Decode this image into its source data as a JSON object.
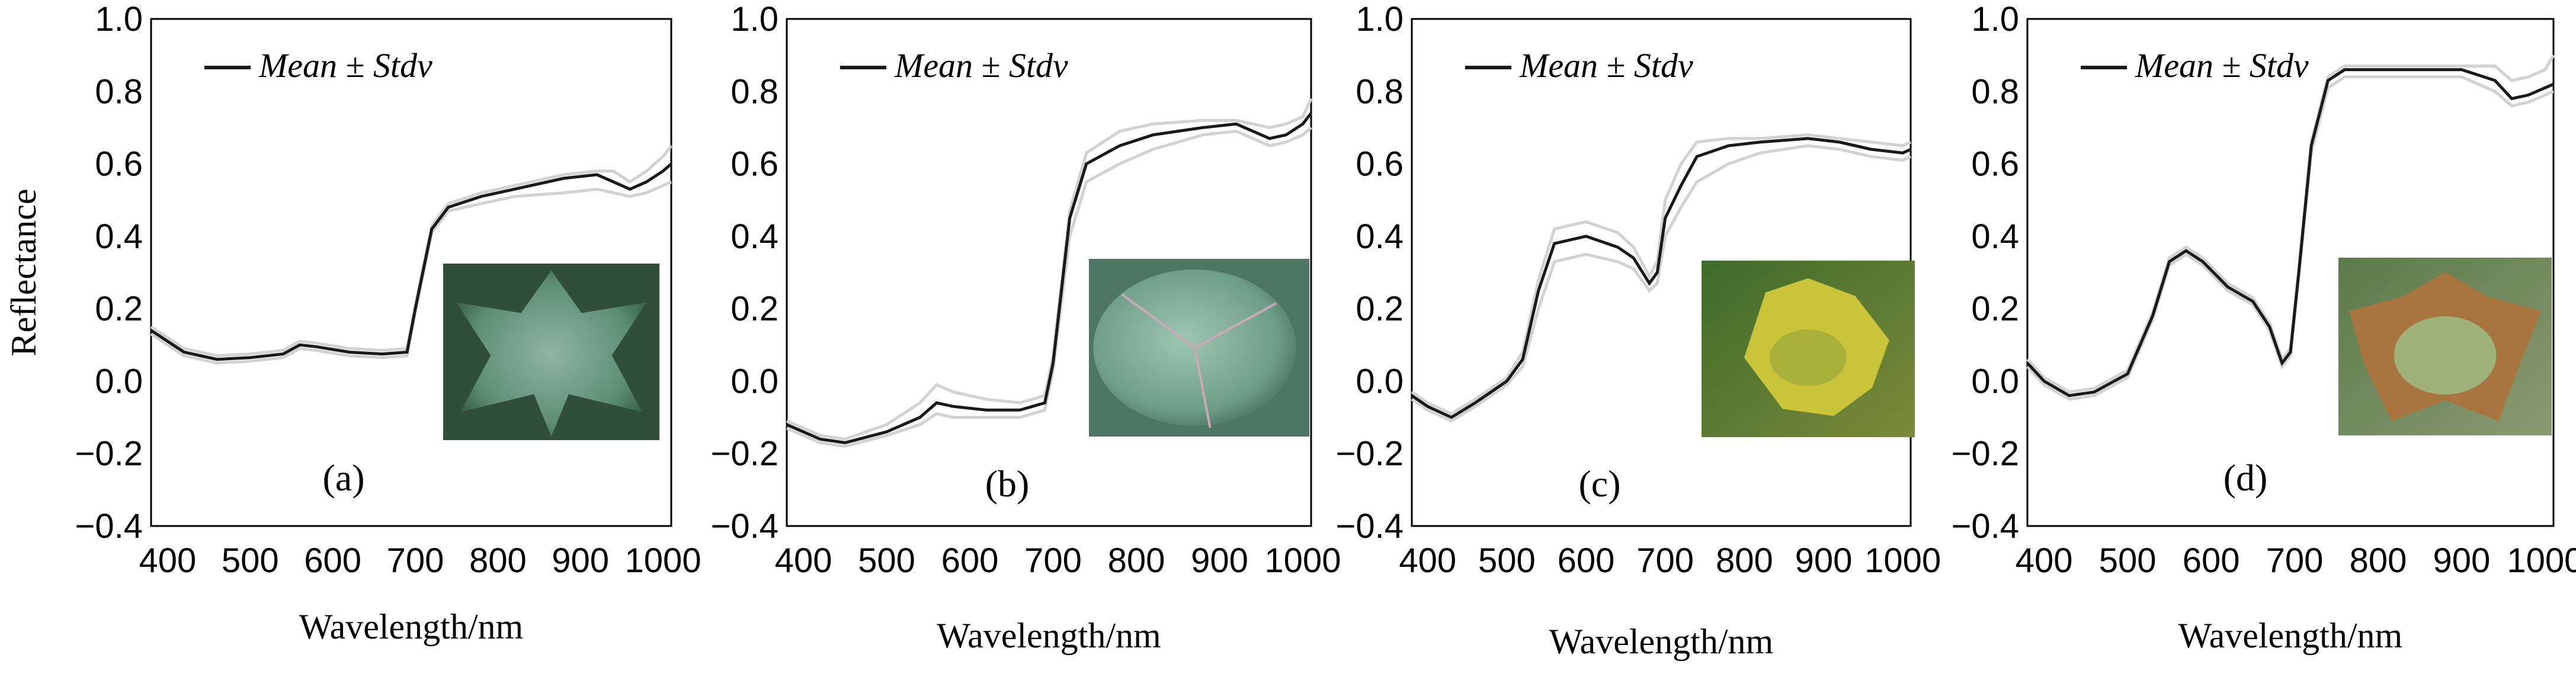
{
  "chart_data": [
    {
      "type": "line",
      "panel_label": "(a)",
      "xlabel": "Wavelength/nm",
      "ylabel": "Reflectance",
      "xlim": [
        380,
        1010
      ],
      "ylim": [
        -0.4,
        1.0
      ],
      "xticks": [
        400,
        500,
        600,
        700,
        800,
        900,
        1000
      ],
      "yticks": [
        "1.0",
        "0.8",
        "0.6",
        "0.4",
        "0.2",
        "0.0",
        "−0.2",
        "−0.4"
      ],
      "legend": "Mean ± Stdv",
      "legend_position": "top-left",
      "inset": "healthy-leaf",
      "series": [
        {
          "name": "Mean",
          "x": [
            380,
            420,
            460,
            500,
            540,
            560,
            580,
            620,
            660,
            690,
            700,
            720,
            740,
            780,
            820,
            880,
            920,
            940,
            960,
            980,
            1000,
            1010
          ],
          "y": [
            0.14,
            0.08,
            0.06,
            0.065,
            0.075,
            0.1,
            0.095,
            0.08,
            0.075,
            0.08,
            0.2,
            0.42,
            0.48,
            0.51,
            0.53,
            0.56,
            0.57,
            0.55,
            0.53,
            0.55,
            0.58,
            0.6
          ]
        },
        {
          "name": "Mean + Stdv",
          "x": [
            380,
            420,
            460,
            500,
            540,
            560,
            580,
            620,
            660,
            690,
            700,
            720,
            740,
            780,
            820,
            880,
            920,
            940,
            960,
            980,
            1000,
            1010
          ],
          "y": [
            0.15,
            0.09,
            0.07,
            0.075,
            0.085,
            0.11,
            0.105,
            0.09,
            0.085,
            0.09,
            0.21,
            0.43,
            0.49,
            0.52,
            0.54,
            0.57,
            0.58,
            0.58,
            0.55,
            0.58,
            0.62,
            0.65
          ]
        },
        {
          "name": "Mean − Stdv",
          "x": [
            380,
            420,
            460,
            500,
            540,
            560,
            580,
            620,
            660,
            690,
            700,
            720,
            740,
            780,
            820,
            880,
            920,
            940,
            960,
            980,
            1000,
            1010
          ],
          "y": [
            0.13,
            0.07,
            0.05,
            0.055,
            0.065,
            0.09,
            0.085,
            0.07,
            0.065,
            0.07,
            0.19,
            0.41,
            0.47,
            0.49,
            0.51,
            0.52,
            0.53,
            0.52,
            0.51,
            0.52,
            0.54,
            0.55
          ]
        }
      ]
    },
    {
      "type": "line",
      "panel_label": "(b)",
      "xlabel": "Wavelength/nm",
      "ylabel": "",
      "xlim": [
        380,
        1010
      ],
      "ylim": [
        -0.4,
        1.0
      ],
      "xticks": [
        400,
        500,
        600,
        700,
        800,
        900,
        1000
      ],
      "yticks": [
        "1.0",
        "0.8",
        "0.6",
        "0.4",
        "0.2",
        "0.0",
        "−0.2",
        "−0.4"
      ],
      "legend": "Mean ± Stdv",
      "legend_position": "top-left",
      "inset": "infected-leaf",
      "series": [
        {
          "name": "Mean",
          "x": [
            380,
            420,
            450,
            500,
            540,
            560,
            580,
            620,
            660,
            690,
            700,
            720,
            740,
            780,
            820,
            880,
            920,
            940,
            960,
            980,
            1000,
            1010
          ],
          "y": [
            -0.12,
            -0.16,
            -0.17,
            -0.14,
            -0.1,
            -0.06,
            -0.07,
            -0.08,
            -0.08,
            -0.06,
            0.05,
            0.45,
            0.6,
            0.65,
            0.68,
            0.7,
            0.71,
            0.69,
            0.67,
            0.68,
            0.71,
            0.74
          ]
        },
        {
          "name": "Mean + Stdv",
          "x": [
            380,
            420,
            450,
            500,
            540,
            560,
            580,
            620,
            660,
            690,
            700,
            720,
            740,
            780,
            820,
            880,
            920,
            940,
            960,
            980,
            1000,
            1010
          ],
          "y": [
            -0.11,
            -0.15,
            -0.16,
            -0.12,
            -0.06,
            -0.01,
            -0.03,
            -0.05,
            -0.06,
            -0.04,
            0.07,
            0.47,
            0.63,
            0.69,
            0.71,
            0.72,
            0.72,
            0.71,
            0.7,
            0.71,
            0.73,
            0.78
          ]
        },
        {
          "name": "Mean − Stdv",
          "x": [
            380,
            420,
            450,
            500,
            540,
            560,
            580,
            620,
            660,
            690,
            700,
            720,
            740,
            780,
            820,
            880,
            920,
            940,
            960,
            980,
            1000,
            1010
          ],
          "y": [
            -0.13,
            -0.17,
            -0.18,
            -0.15,
            -0.12,
            -0.09,
            -0.1,
            -0.1,
            -0.1,
            -0.08,
            0.03,
            0.4,
            0.55,
            0.6,
            0.64,
            0.68,
            0.69,
            0.67,
            0.65,
            0.66,
            0.68,
            0.7
          ]
        }
      ]
    },
    {
      "type": "line",
      "panel_label": "(c)",
      "xlabel": "Wavelength/nm",
      "ylabel": "",
      "xlim": [
        380,
        1010
      ],
      "ylim": [
        -0.4,
        1.0
      ],
      "xticks": [
        400,
        500,
        600,
        700,
        800,
        900,
        1000
      ],
      "yticks": [
        "1.0",
        "0.8",
        "0.6",
        "0.4",
        "0.2",
        "0.0",
        "−0.2",
        "−0.4"
      ],
      "legend": "Mean ± Stdv",
      "legend_position": "top-left",
      "inset": "yellowing-leaf",
      "series": [
        {
          "name": "Mean",
          "x": [
            380,
            400,
            430,
            460,
            500,
            520,
            540,
            560,
            600,
            640,
            660,
            680,
            690,
            700,
            720,
            740,
            780,
            820,
            880,
            920,
            960,
            1000,
            1010
          ],
          "y": [
            -0.04,
            -0.07,
            -0.1,
            -0.06,
            0.0,
            0.06,
            0.25,
            0.38,
            0.4,
            0.37,
            0.34,
            0.27,
            0.3,
            0.45,
            0.54,
            0.62,
            0.65,
            0.66,
            0.67,
            0.66,
            0.64,
            0.63,
            0.64
          ]
        },
        {
          "name": "Mean + Stdv",
          "x": [
            380,
            400,
            430,
            460,
            500,
            520,
            540,
            560,
            600,
            640,
            660,
            680,
            690,
            700,
            720,
            740,
            780,
            820,
            880,
            920,
            960,
            1000,
            1010
          ],
          "y": [
            -0.03,
            -0.06,
            -0.09,
            -0.05,
            0.01,
            0.08,
            0.28,
            0.42,
            0.44,
            0.41,
            0.37,
            0.29,
            0.33,
            0.5,
            0.6,
            0.66,
            0.67,
            0.67,
            0.68,
            0.67,
            0.66,
            0.65,
            0.66
          ]
        },
        {
          "name": "Mean − Stdv",
          "x": [
            380,
            400,
            430,
            460,
            500,
            520,
            540,
            560,
            600,
            640,
            660,
            680,
            690,
            700,
            720,
            740,
            780,
            820,
            880,
            920,
            960,
            1000,
            1010
          ],
          "y": [
            -0.05,
            -0.08,
            -0.11,
            -0.07,
            -0.01,
            0.04,
            0.2,
            0.33,
            0.35,
            0.33,
            0.31,
            0.25,
            0.27,
            0.4,
            0.48,
            0.55,
            0.6,
            0.63,
            0.65,
            0.64,
            0.62,
            0.61,
            0.62
          ]
        }
      ]
    },
    {
      "type": "line",
      "panel_label": "(d)",
      "xlabel": "Wavelength/nm",
      "ylabel": "",
      "xlim": [
        380,
        1010
      ],
      "ylim": [
        -0.4,
        1.0
      ],
      "xticks": [
        400,
        500,
        600,
        700,
        800,
        900,
        1000
      ],
      "yticks": [
        "1.0",
        "0.8",
        "0.6",
        "0.4",
        "0.2",
        "0.0",
        "−0.2",
        "−0.4"
      ],
      "legend": "Mean ± Stdv",
      "legend_position": "top-left",
      "inset": "necrotic-leaf",
      "series": [
        {
          "name": "Mean",
          "x": [
            380,
            400,
            430,
            460,
            500,
            530,
            550,
            570,
            590,
            620,
            650,
            670,
            685,
            695,
            705,
            720,
            740,
            760,
            800,
            850,
            900,
            940,
            960,
            980,
            1000,
            1010
          ],
          "y": [
            0.05,
            0.0,
            -0.04,
            -0.03,
            0.02,
            0.18,
            0.33,
            0.36,
            0.33,
            0.26,
            0.22,
            0.15,
            0.05,
            0.08,
            0.3,
            0.65,
            0.83,
            0.86,
            0.86,
            0.86,
            0.86,
            0.83,
            0.78,
            0.79,
            0.81,
            0.82
          ]
        },
        {
          "name": "Mean + Stdv",
          "x": [
            380,
            400,
            430,
            460,
            500,
            530,
            550,
            570,
            590,
            620,
            650,
            670,
            685,
            695,
            705,
            720,
            740,
            760,
            800,
            850,
            900,
            940,
            960,
            980,
            1000,
            1010
          ],
          "y": [
            0.06,
            0.01,
            -0.03,
            -0.02,
            0.03,
            0.19,
            0.34,
            0.37,
            0.34,
            0.27,
            0.23,
            0.16,
            0.06,
            0.09,
            0.31,
            0.66,
            0.84,
            0.87,
            0.87,
            0.87,
            0.87,
            0.87,
            0.83,
            0.84,
            0.86,
            0.9
          ]
        },
        {
          "name": "Mean − Stdv",
          "x": [
            380,
            400,
            430,
            460,
            500,
            530,
            550,
            570,
            590,
            620,
            650,
            670,
            685,
            695,
            705,
            720,
            740,
            760,
            800,
            850,
            900,
            940,
            960,
            980,
            1000,
            1010
          ],
          "y": [
            0.04,
            -0.01,
            -0.05,
            -0.04,
            0.01,
            0.17,
            0.32,
            0.35,
            0.32,
            0.25,
            0.21,
            0.14,
            0.04,
            0.07,
            0.29,
            0.63,
            0.81,
            0.84,
            0.84,
            0.84,
            0.84,
            0.8,
            0.76,
            0.77,
            0.79,
            0.8
          ]
        }
      ]
    }
  ],
  "colors": {
    "mean_line": "#1a1a1a",
    "stdv_line": "#d2d2d2",
    "frame": "#000000"
  }
}
